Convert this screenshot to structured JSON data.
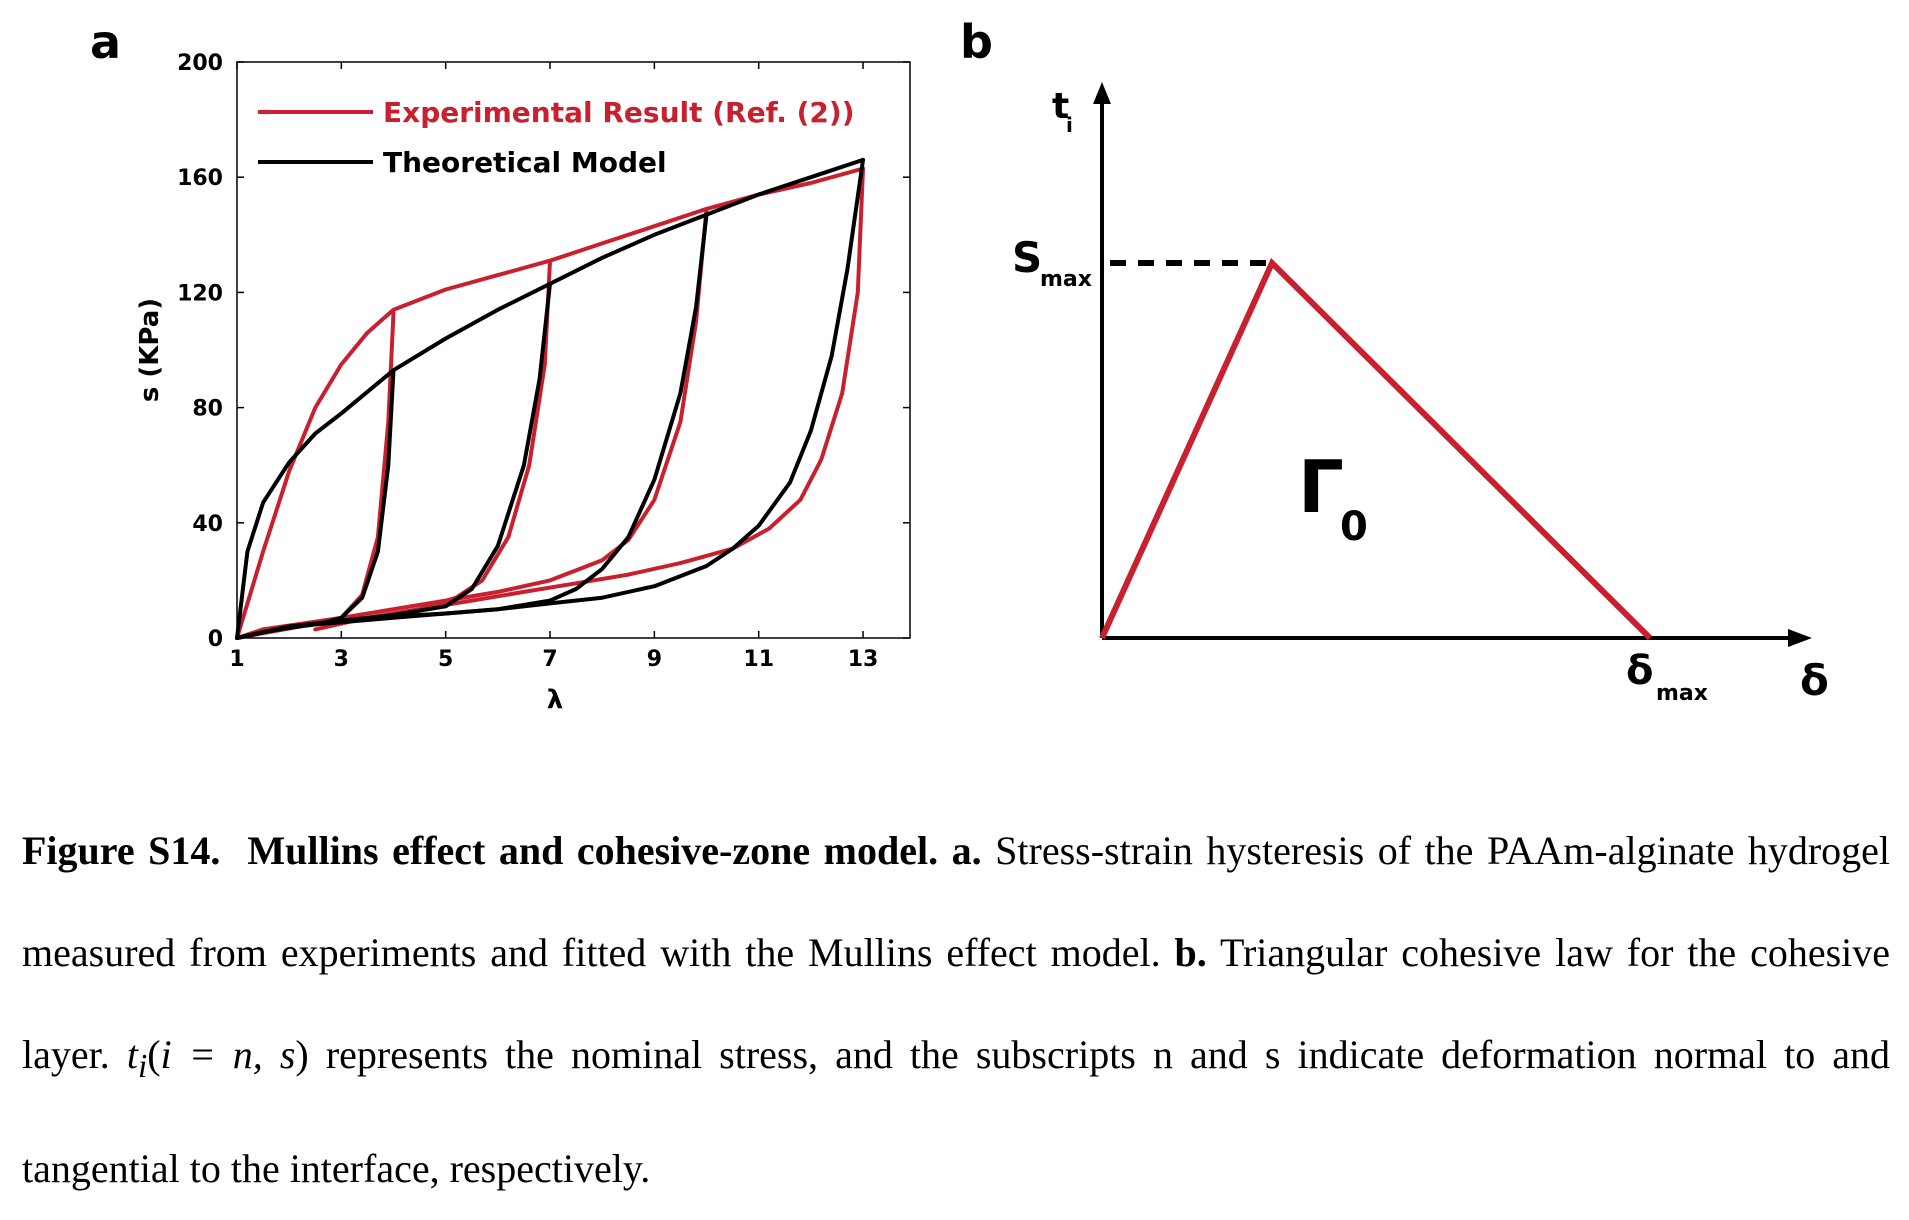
{
  "panel_a": {
    "label": "a",
    "legend": [
      "Experimental Result (Ref. (2))",
      "Theoretical Model"
    ],
    "ylabel": "s (KPa)",
    "xlabel": "λ",
    "x_ticks": [
      "1",
      "3",
      "5",
      "7",
      "9",
      "11",
      "13"
    ],
    "y_ticks": [
      "0",
      "40",
      "80",
      "120",
      "160",
      "200"
    ]
  },
  "panel_b": {
    "label": "b",
    "y_axis_main": "t",
    "y_axis_sub": "i",
    "x_axis_label": "δ",
    "smax_main": "S",
    "smax_sub": "max",
    "dmax_main": "δ",
    "dmax_sub": "max",
    "gamma_main": "Γ",
    "gamma_sub": "0"
  },
  "colors": {
    "experimental": "#c8202f",
    "model": "#000000",
    "axis": "#000000"
  },
  "chart_data": [
    {
      "type": "line",
      "xlabel": "λ",
      "ylabel": "s (KPa)",
      "xlim": [
        1,
        13.9
      ],
      "ylim": [
        0,
        200
      ],
      "x_ticks": [
        1,
        3,
        5,
        7,
        9,
        11,
        13
      ],
      "y_ticks": [
        0,
        40,
        80,
        120,
        160,
        200
      ],
      "legend_position": "top-left",
      "series": [
        {
          "name": "Theoretical Model",
          "envelope": {
            "x": [
              1,
              1.2,
              1.5,
              2,
              2.5,
              3,
              4,
              5,
              6,
              7,
              8,
              9,
              10,
              11,
              12,
              13
            ],
            "y": [
              0,
              30,
              47,
              61,
              71,
              78,
              93,
              104,
              114,
              123,
              132,
              140,
              147,
              154,
              160,
              166
            ]
          },
          "unloading": [
            {
              "x": [
                4,
                3.9,
                3.7,
                3.4,
                3.0,
                2.6,
                2.0,
                1.5,
                1.0
              ],
              "y": [
                93,
                60,
                30,
                14,
                7,
                5,
                3.5,
                2,
                0
              ]
            },
            {
              "x": [
                7,
                6.8,
                6.5,
                6.0,
                5.5,
                5.0,
                4.0,
                3.0,
                2.0,
                1.0
              ],
              "y": [
                123,
                90,
                60,
                32,
                17,
                11,
                8,
                6,
                4,
                0
              ]
            },
            {
              "x": [
                10,
                9.8,
                9.5,
                9.0,
                8.5,
                8.0,
                7.5,
                7.0,
                6.0,
                5.0,
                4.0,
                3.0,
                2.0,
                1.0
              ],
              "y": [
                147,
                115,
                85,
                55,
                35,
                24,
                17,
                13,
                10,
                8.5,
                7.5,
                6,
                4,
                0
              ]
            },
            {
              "x": [
                13,
                12.7,
                12.4,
                12.0,
                11.6,
                11.0,
                10.5,
                10.0,
                9.0,
                8.0,
                7.0,
                6.0,
                5.0,
                4.0,
                3.0,
                2.0,
                1.0
              ],
              "y": [
                166,
                128,
                98,
                72,
                54,
                39,
                31,
                25,
                18,
                14,
                12,
                10,
                8.5,
                7,
                5.5,
                4,
                0
              ]
            }
          ]
        },
        {
          "name": "Experimental Result (Ref. (2))",
          "envelope": {
            "x": [
              1,
              1.5,
              2,
              2.5,
              3,
              3.5,
              4,
              5,
              6,
              7,
              8,
              9,
              10,
              11,
              12,
              13
            ],
            "y": [
              0,
              30,
              58,
              80,
              95,
              106,
              114,
              121,
              126,
              131,
              137,
              143,
              149,
              154,
              158,
              163
            ]
          },
          "unloading": [
            {
              "x": [
                4,
                3.9,
                3.7,
                3.4,
                3.0,
                2.5,
                2.0,
                1.5,
                1.0
              ],
              "y": [
                113,
                75,
                35,
                15,
                7,
                5,
                4,
                3,
                0
              ]
            },
            {
              "x": [
                7,
                6.9,
                6.6,
                6.2,
                5.7,
                5.2,
                4.5,
                3.5,
                2.5,
                1.0
              ],
              "y": [
                131,
                95,
                60,
                35,
                20,
                14,
                10,
                7,
                5,
                0
              ]
            },
            {
              "x": [
                10,
                9.8,
                9.5,
                9.0,
                8.5,
                8.0,
                7.0,
                6.0,
                5.0,
                4.0,
                3.0,
                1.5
              ],
              "y": [
                149,
                110,
                75,
                48,
                34,
                27,
                20,
                16,
                13,
                10,
                7,
                3
              ]
            },
            {
              "x": [
                13,
                12.9,
                12.6,
                12.2,
                11.8,
                11.2,
                10.5,
                9.5,
                8.5,
                7.5,
                6.5,
                5.5,
                4.5,
                3.5,
                2.5
              ],
              "y": [
                163,
                120,
                85,
                62,
                48,
                38,
                31,
                26,
                22,
                19,
                16,
                13,
                10,
                7,
                3
              ]
            }
          ]
        }
      ]
    },
    {
      "type": "line",
      "xlabel": "δ",
      "ylabel": "t_i",
      "series": [
        {
          "name": "",
          "x": [
            0,
            0.31,
            1.0
          ],
          "y": [
            0,
            1.0,
            0
          ]
        }
      ]
    }
  ],
  "caption": {
    "fig_id": "Figure S14.",
    "bold_title": "Mullins effect and cohesive-zone model.",
    "a_label": "a.",
    "a_text": "Stress-strain hysteresis of the PAAm-alginate hydrogel measured from experiments and fitted with the Mullins effect model.",
    "b_label": "b.",
    "b_text": "Triangular cohesive law for the cohesive layer.",
    "math_t": "t",
    "math_i": "i",
    "math_paren": "(",
    "math_expr": "i = n, s",
    "math_close": ")",
    "rest": "represents the nominal stress, and the subscripts n and s indicate deformation normal to and tangential to the interface, respectively."
  }
}
